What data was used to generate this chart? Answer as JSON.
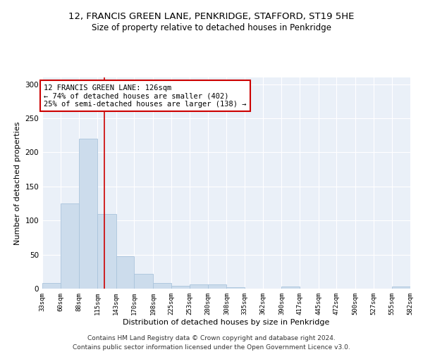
{
  "title": "12, FRANCIS GREEN LANE, PENKRIDGE, STAFFORD, ST19 5HE",
  "subtitle": "Size of property relative to detached houses in Penkridge",
  "xlabel": "Distribution of detached houses by size in Penkridge",
  "ylabel": "Number of detached properties",
  "bar_color": "#ccdcec",
  "bar_edge_color": "#aac4dc",
  "background_color": "#eaf0f8",
  "grid_color": "#ffffff",
  "vline_x": 126,
  "vline_color": "#cc0000",
  "annotation_text": "12 FRANCIS GREEN LANE: 126sqm\n← 74% of detached houses are smaller (402)\n25% of semi-detached houses are larger (138) →",
  "annotation_box_color": "#ffffff",
  "annotation_box_edge": "#cc0000",
  "bin_edges": [
    33,
    60,
    88,
    115,
    143,
    170,
    198,
    225,
    253,
    280,
    308,
    335,
    362,
    390,
    417,
    445,
    472,
    500,
    527,
    555,
    582
  ],
  "bin_counts": [
    8,
    125,
    220,
    110,
    48,
    22,
    8,
    4,
    6,
    6,
    2,
    0,
    0,
    3,
    0,
    0,
    0,
    0,
    0,
    3
  ],
  "ylim": [
    0,
    310
  ],
  "yticks": [
    0,
    50,
    100,
    150,
    200,
    250,
    300
  ],
  "footer_text": "Contains HM Land Registry data © Crown copyright and database right 2024.\nContains public sector information licensed under the Open Government Licence v3.0.",
  "title_fontsize": 9.5,
  "subtitle_fontsize": 8.5,
  "xlabel_fontsize": 8,
  "ylabel_fontsize": 8,
  "annotation_fontsize": 7.5,
  "tick_fontsize": 6.5,
  "ytick_fontsize": 7.5,
  "footer_fontsize": 6.5
}
